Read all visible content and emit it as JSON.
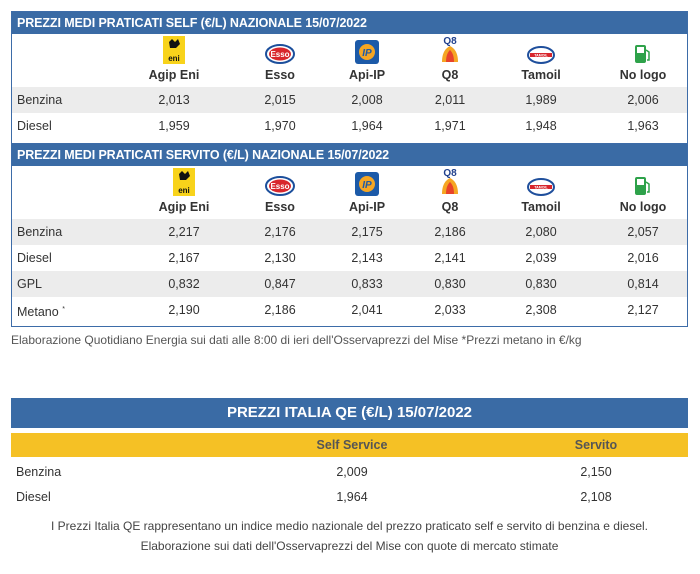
{
  "self_table": {
    "title": "PREZZI MEDI PRATICATI SELF (€/L) NAZIONALE 15/07/2022",
    "brands": [
      "Agip Eni",
      "Esso",
      "Api-IP",
      "Q8",
      "Tamoil",
      "No logo"
    ],
    "rows": [
      {
        "label": "Benzina",
        "values": [
          "2,013",
          "2,015",
          "2,008",
          "2,011",
          "1,989",
          "2,006"
        ]
      },
      {
        "label": "Diesel",
        "values": [
          "1,959",
          "1,970",
          "1,964",
          "1,971",
          "1,948",
          "1,963"
        ]
      }
    ]
  },
  "servito_table": {
    "title": "PREZZI MEDI PRATICATI SERVITO (€/L) NAZIONALE 15/07/2022",
    "brands": [
      "Agip Eni",
      "Esso",
      "Api-IP",
      "Q8",
      "Tamoil",
      "No logo"
    ],
    "rows": [
      {
        "label": "Benzina",
        "values": [
          "2,217",
          "2,176",
          "2,175",
          "2,186",
          "2,080",
          "2,057"
        ]
      },
      {
        "label": "Diesel",
        "values": [
          "2,167",
          "2,130",
          "2,143",
          "2,141",
          "2,039",
          "2,016"
        ]
      },
      {
        "label": "GPL",
        "values": [
          "0,832",
          "0,847",
          "0,833",
          "0,830",
          "0,830",
          "0,814"
        ]
      },
      {
        "label": "Metano",
        "values": [
          "2,190",
          "2,186",
          "2,041",
          "2,033",
          "2,308",
          "2,127"
        ]
      }
    ],
    "metano_mark": "*"
  },
  "note_top": "Elaborazione Quotidiano Energia sui dati alle 8:00 di ieri dell'Osservaprezzi del Mise *Prezzi metano in €/kg",
  "qe_table": {
    "title": "PREZZI ITALIA QE (€/L) 15/07/2022",
    "columns": [
      "Self Service",
      "Servito"
    ],
    "rows": [
      {
        "label": "Benzina",
        "values": [
          "2,009",
          "2,150"
        ]
      },
      {
        "label": "Diesel",
        "values": [
          "1,964",
          "2,108"
        ]
      }
    ]
  },
  "note_bottom_1": "I Prezzi Italia QE rappresentano un indice medio nazionale del prezzo praticato self e servito di benzina e diesel.",
  "note_bottom_2": "Elaborazione sui dati dell'Osservaprezzi del Mise con quote di mercato stimate",
  "logos": {
    "eni": {
      "text": "eni",
      "color": "#f8d31b"
    },
    "esso": {
      "text": "Esso",
      "color": "#d8262c"
    },
    "ip": {
      "text": "IP",
      "color": "#1c5aa8"
    },
    "q8": {
      "text": "Q8",
      "color": "#1f3f8c"
    },
    "tamoil": {
      "text": "TAMOIL",
      "color": "#1f4f9c"
    },
    "nologo": {
      "color": "#2ea24a"
    }
  }
}
